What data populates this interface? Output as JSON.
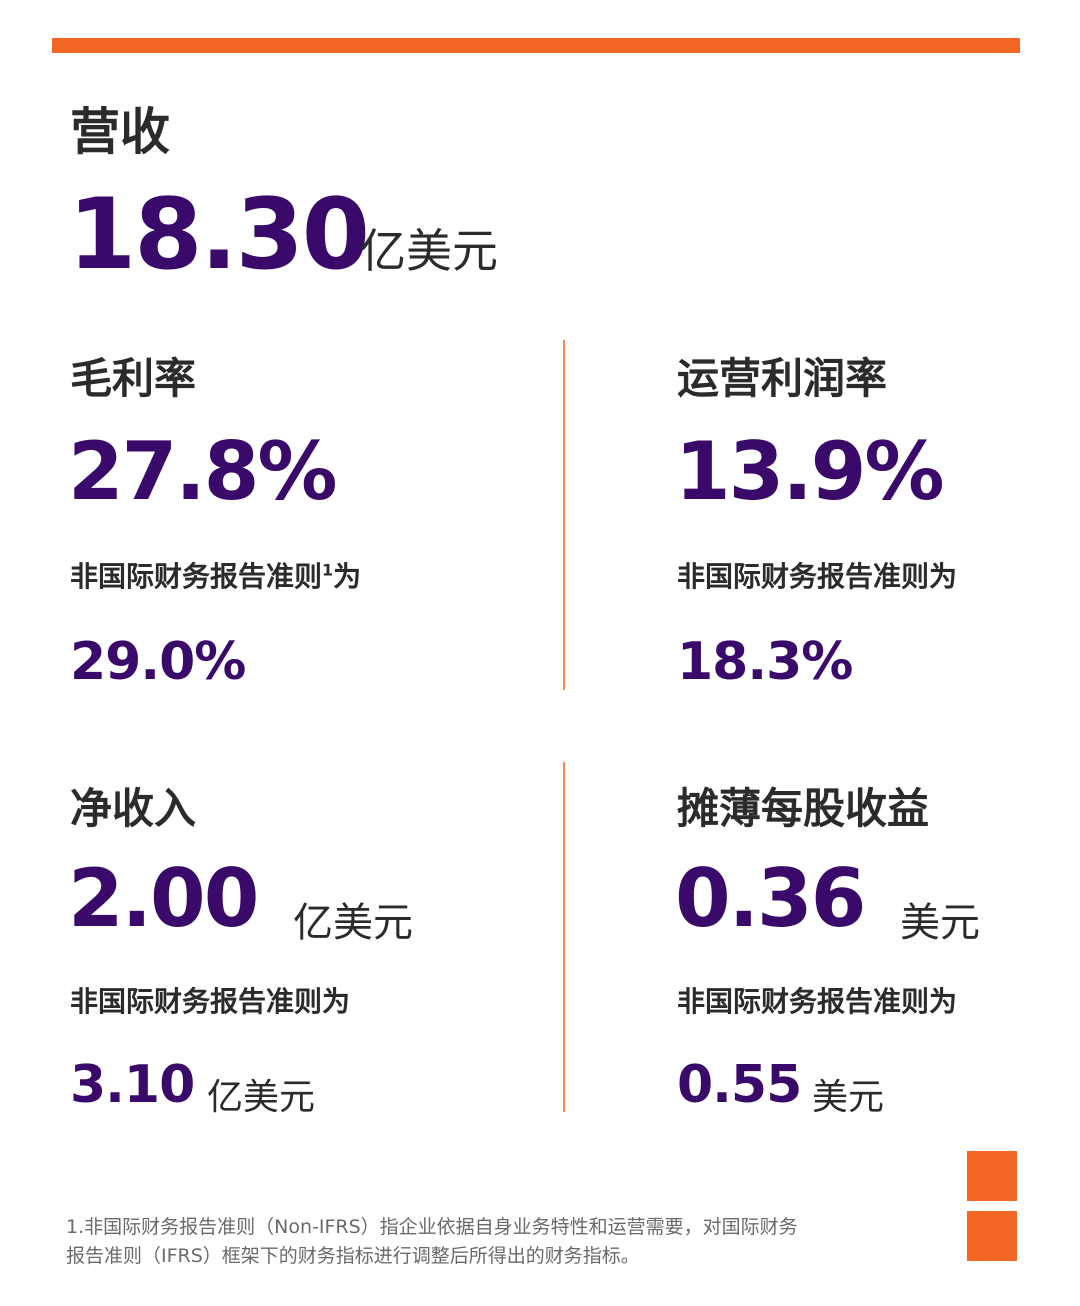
{
  "revenue": {
    "label": "营收",
    "value": "18.30",
    "unit": "亿美元"
  },
  "gross_margin": {
    "label": "毛利率",
    "value": "27.8%",
    "non_ifrs_label": "非国际财务报告准则",
    "footnote_ref": "1",
    "non_ifrs_suffix": "为",
    "non_ifrs_value": "29.0%"
  },
  "operating_margin": {
    "label": "运营利润率",
    "value": "13.9%",
    "non_ifrs_label": "非国际财务报告准则为",
    "non_ifrs_value": "18.3%"
  },
  "net_income": {
    "label": "净收入",
    "value": "2.00",
    "unit": "亿美元",
    "non_ifrs_label": "非国际财务报告准则为",
    "non_ifrs_value": "3.10",
    "non_ifrs_unit": "亿美元"
  },
  "diluted_eps": {
    "label": "摊薄每股收益",
    "value": "0.36",
    "unit": "美元",
    "non_ifrs_label": "非国际财务报告准则为",
    "non_ifrs_value": "0.55",
    "non_ifrs_unit": "美元"
  },
  "footnote": {
    "line1": "1.非国际财务报告准则（Non-IFRS）指企业依据自身业务特性和运营需要，对国际财务",
    "line2": "报告准则（IFRS）框架下的财务指标进行调整后所得出的财务指标。"
  },
  "colors": {
    "accent": "#F26522",
    "value_purple": "#3A0A6B"
  }
}
